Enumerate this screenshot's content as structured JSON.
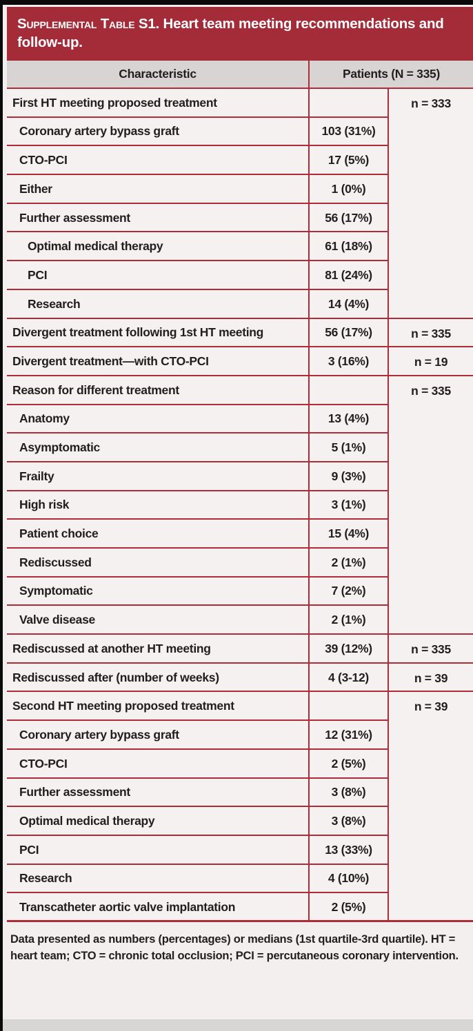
{
  "banner": {
    "label_smallcaps": "Supplemental Table S1.",
    "title_rest": " Heart team meeting recommendations and follow-up."
  },
  "table": {
    "header": {
      "characteristic": "Characteristic",
      "patients": "Patients (N = 335)"
    },
    "rows": [
      {
        "label": "First HT meeting proposed treatment",
        "indent": 0,
        "value": "",
        "n": "n = 333",
        "n_rowspan": 8
      },
      {
        "label": "Coronary artery bypass graft",
        "indent": 1,
        "value": "103 (31%)"
      },
      {
        "label": "CTO-PCI",
        "indent": 1,
        "value": "17 (5%)"
      },
      {
        "label": "Either",
        "indent": 1,
        "value": "1 (0%)"
      },
      {
        "label": "Further assessment",
        "indent": 1,
        "value": "56 (17%)"
      },
      {
        "label": "Optimal medical therapy",
        "indent": 2,
        "value": "61 (18%)"
      },
      {
        "label": "PCI",
        "indent": 2,
        "value": "81 (24%)"
      },
      {
        "label": "Research",
        "indent": 2,
        "value": "14 (4%)"
      },
      {
        "label": "Divergent treatment following 1st HT meeting",
        "indent": 0,
        "value": "56 (17%)",
        "n": "n = 335",
        "n_rowspan": 1
      },
      {
        "label": "Divergent treatment—with CTO-PCI",
        "indent": 0,
        "value": "3 (16%)",
        "n": "n = 19",
        "n_rowspan": 1
      },
      {
        "label": "Reason for different treatment",
        "indent": 0,
        "value": "",
        "n": "n = 335",
        "n_rowspan": 9
      },
      {
        "label": "Anatomy",
        "indent": 1,
        "value": "13 (4%)"
      },
      {
        "label": "Asymptomatic",
        "indent": 1,
        "value": "5 (1%)"
      },
      {
        "label": "Frailty",
        "indent": 1,
        "value": "9 (3%)"
      },
      {
        "label": "High risk",
        "indent": 1,
        "value": "3 (1%)"
      },
      {
        "label": "Patient choice",
        "indent": 1,
        "value": "15 (4%)"
      },
      {
        "label": "Rediscussed",
        "indent": 1,
        "value": "2 (1%)"
      },
      {
        "label": "Symptomatic",
        "indent": 1,
        "value": "7 (2%)"
      },
      {
        "label": "Valve disease",
        "indent": 1,
        "value": "2 (1%)"
      },
      {
        "label": "Rediscussed at another HT meeting",
        "indent": 0,
        "value": "39 (12%)",
        "n": "n = 335",
        "n_rowspan": 1
      },
      {
        "label": "Rediscussed after (number of weeks)",
        "indent": 0,
        "value": "4 (3-12)",
        "n": "n = 39",
        "n_rowspan": 1
      },
      {
        "label": "Second HT meeting proposed treatment",
        "indent": 0,
        "value": "",
        "n": "n = 39",
        "n_rowspan": 8
      },
      {
        "label": "Coronary artery bypass graft",
        "indent": 1,
        "value": "12 (31%)"
      },
      {
        "label": "CTO-PCI",
        "indent": 1,
        "value": "2 (5%)"
      },
      {
        "label": "Further assessment",
        "indent": 1,
        "value": "3 (8%)"
      },
      {
        "label": "Optimal medical therapy",
        "indent": 1,
        "value": "3 (8%)"
      },
      {
        "label": "PCI",
        "indent": 1,
        "value": "13 (33%)"
      },
      {
        "label": "Research",
        "indent": 1,
        "value": "4 (10%)"
      },
      {
        "label": "Transcatheter aortic valve implantation",
        "indent": 1,
        "value": "2 (5%)"
      }
    ]
  },
  "footnote": {
    "text": "Data presented as numbers (percentages) or medians (1st quartile-3rd quartile). HT = heart team; CTO = chronic total occlusion; PCI = percutaneous coronary intervention."
  },
  "colors": {
    "banner_red": "#a42c39",
    "border_red": "#af2b38",
    "header_gray": "#d8d4d4",
    "row_bg": "#f4f1f0",
    "page_bg": "#f2efee",
    "text": "#221e1f"
  }
}
